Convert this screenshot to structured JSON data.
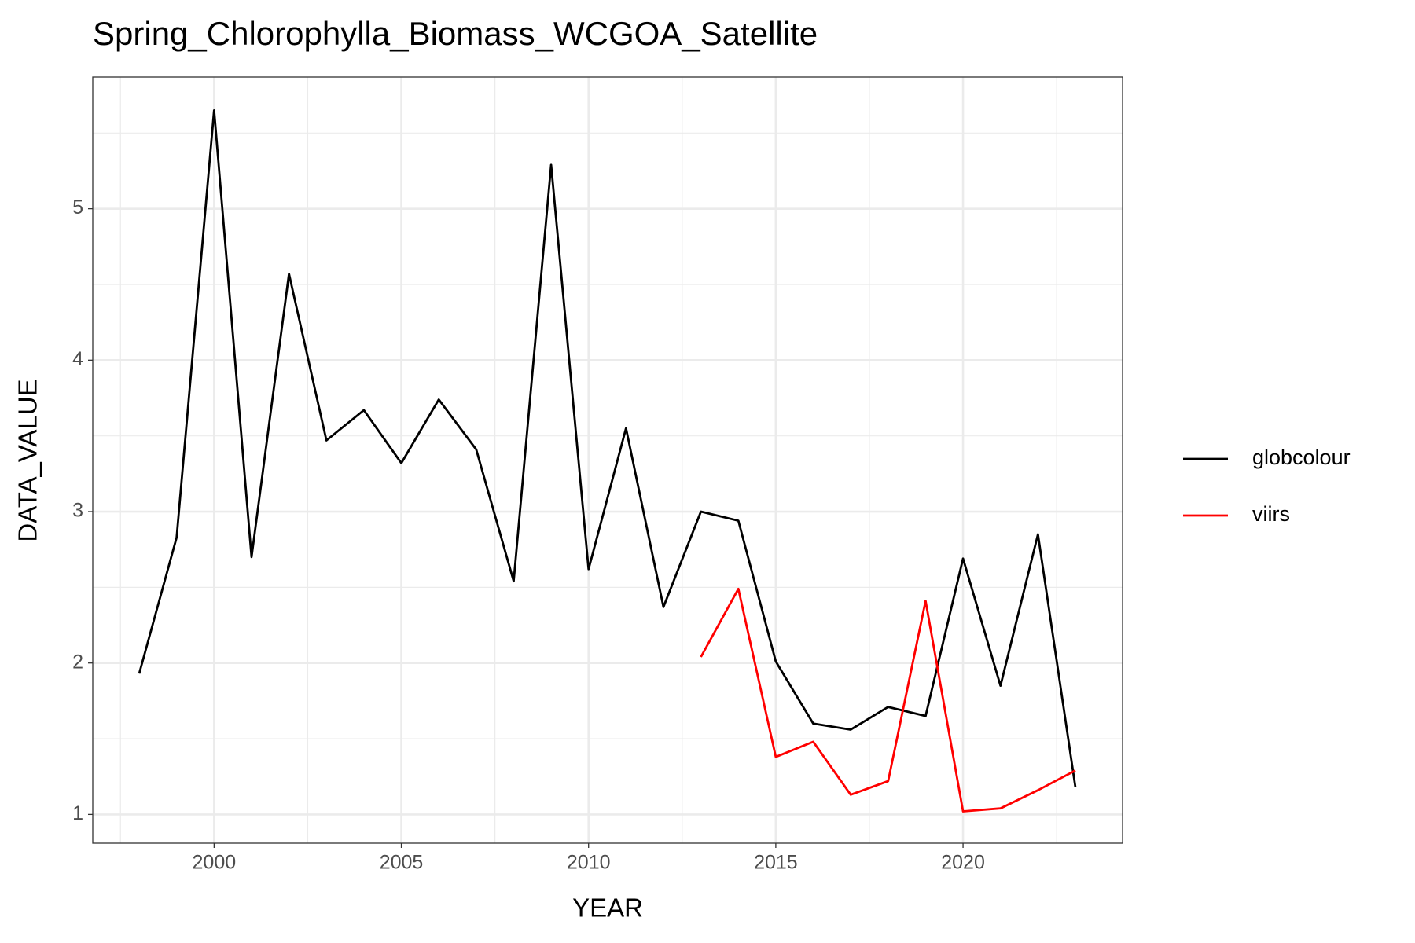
{
  "chart_data": {
    "type": "line",
    "title": "Spring_Chlorophylla_Biomass_WCGOA_Satellite",
    "x_label": "YEAR",
    "y_label": "DATA_VALUE",
    "x": [
      1998,
      1999,
      2000,
      2001,
      2002,
      2003,
      2004,
      2005,
      2006,
      2007,
      2008,
      2009,
      2010,
      2011,
      2012,
      2013,
      2014,
      2015,
      2016,
      2017,
      2018,
      2019,
      2020,
      2021,
      2022,
      2023
    ],
    "series": [
      {
        "name": "globcolour",
        "color": "#000000",
        "values": [
          1.93,
          2.83,
          5.65,
          2.7,
          4.57,
          3.47,
          3.67,
          3.32,
          3.74,
          3.41,
          2.54,
          5.29,
          2.62,
          3.55,
          2.37,
          3.0,
          2.94,
          2.01,
          1.6,
          1.56,
          1.71,
          1.65,
          2.69,
          1.85,
          2.85,
          1.18
        ]
      },
      {
        "name": "viirs",
        "color": "#ff0000",
        "values": [
          null,
          null,
          null,
          null,
          null,
          null,
          null,
          null,
          null,
          null,
          null,
          null,
          null,
          null,
          null,
          2.04,
          2.49,
          1.38,
          1.48,
          1.13,
          1.22,
          2.41,
          1.02,
          1.04,
          1.16,
          1.29
        ]
      }
    ],
    "xlim": [
      1996.76,
      2024.26
    ],
    "xticks": [
      2000,
      2005,
      2010,
      2015,
      2020
    ],
    "ylim": [
      0.81,
      5.87
    ],
    "yticks": [
      1,
      2,
      3,
      4,
      5
    ],
    "grid": true,
    "minor_grid": true,
    "legend": "right"
  }
}
